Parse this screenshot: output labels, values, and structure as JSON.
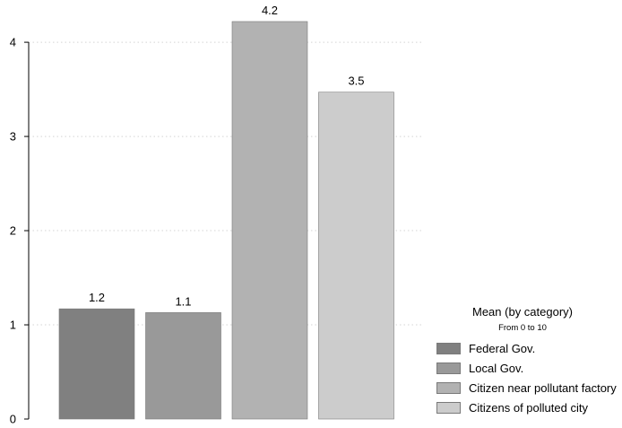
{
  "chart_data": {
    "type": "bar",
    "categories": [
      "Federal Gov.",
      "Local Gov.",
      "Citizen near pollutant factory",
      "Citizens of polluted city"
    ],
    "values": [
      1.17,
      1.13,
      4.22,
      3.47
    ],
    "value_labels": [
      "1.2",
      "1.1",
      "4.2",
      "3.5"
    ],
    "colors": [
      "#808080",
      "#999999",
      "#b2b2b2",
      "#cccccc"
    ],
    "ylim": [
      0,
      4.22
    ],
    "yticks": [
      0,
      1,
      2,
      3,
      4
    ],
    "grid": true,
    "legend_position": "bottom-right",
    "legend": {
      "title": "Mean (by category)",
      "subtitle": "From 0 to 10"
    }
  }
}
